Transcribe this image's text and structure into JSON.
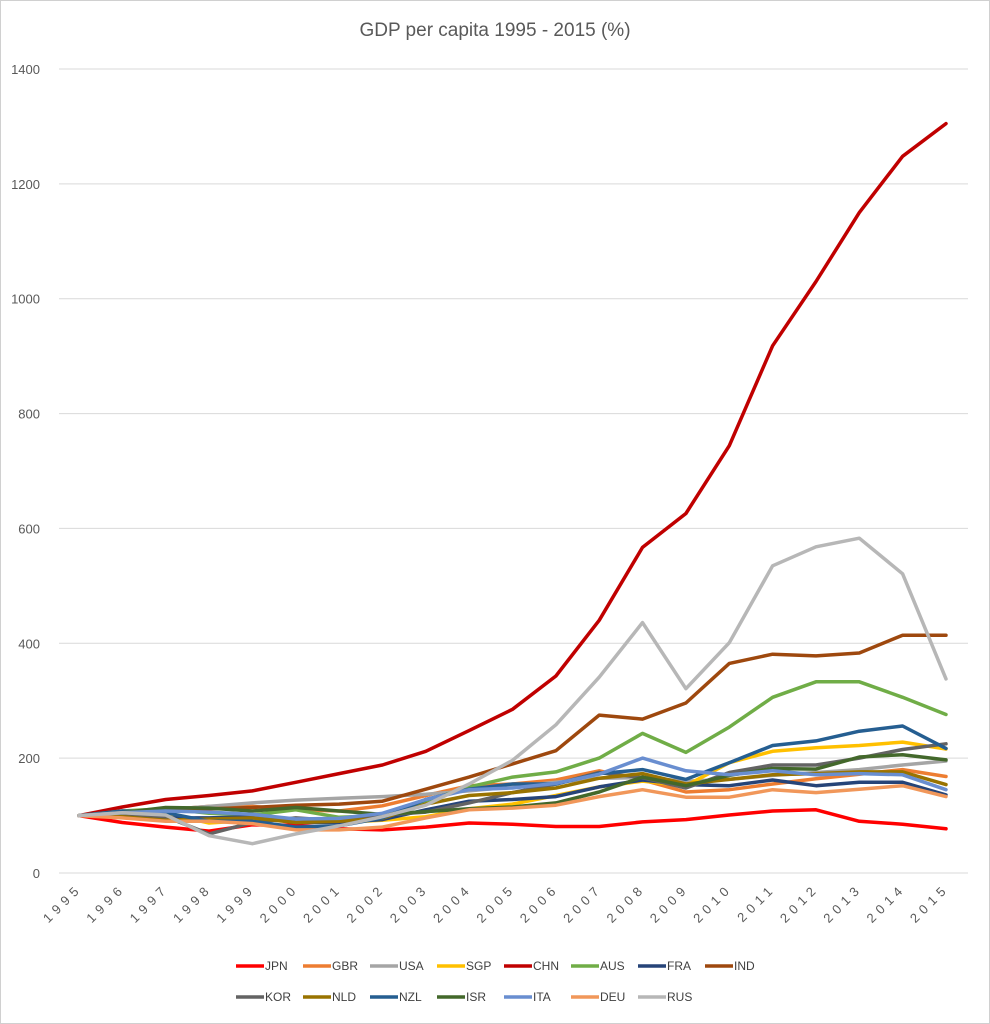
{
  "chart_data": {
    "type": "line",
    "title": "GDP per capita 1995 - 2015 (%)",
    "xlabel": "",
    "ylabel": "",
    "ylim": [
      0,
      1400
    ],
    "yticks": [
      0,
      200,
      400,
      600,
      800,
      1000,
      1200,
      1400
    ],
    "grid": true,
    "legend_position": "bottom",
    "x": [
      "1995",
      "1996",
      "1997",
      "1998",
      "1999",
      "2000",
      "2001",
      "2002",
      "2003",
      "2004",
      "2005",
      "2006",
      "2007",
      "2008",
      "2009",
      "2010",
      "2011",
      "2012",
      "2013",
      "2014",
      "2015"
    ],
    "series": [
      {
        "name": "JPN",
        "color": "#ff0000",
        "values": [
          100,
          88,
          80,
          73,
          84,
          83,
          77,
          75,
          80,
          87,
          85,
          81,
          81,
          89,
          93,
          101,
          108,
          110,
          90,
          85,
          77
        ]
      },
      {
        "name": "GBR",
        "color": "#ed7d31",
        "values": [
          100,
          98,
          110,
          116,
          116,
          110,
          108,
          117,
          135,
          152,
          155,
          162,
          178,
          162,
          141,
          145,
          155,
          164,
          172,
          180,
          168
        ]
      },
      {
        "name": "USA",
        "color": "#a5a5a5",
        "values": [
          100,
          105,
          110,
          116,
          122,
          127,
          130,
          133,
          137,
          143,
          150,
          158,
          165,
          166,
          160,
          163,
          170,
          175,
          180,
          188,
          195
        ]
      },
      {
        "name": "SGP",
        "color": "#ffc000",
        "values": [
          100,
          104,
          104,
          87,
          92,
          95,
          88,
          92,
          98,
          112,
          120,
          135,
          150,
          160,
          152,
          192,
          212,
          218,
          222,
          228,
          216
        ]
      },
      {
        "name": "CHN",
        "color": "#c00000",
        "values": [
          100,
          115,
          128,
          135,
          143,
          158,
          173,
          188,
          212,
          248,
          285,
          343,
          440,
          567,
          626,
          744,
          918,
          1030,
          1150,
          1248,
          1305
        ]
      },
      {
        "name": "AUS",
        "color": "#70ad47",
        "values": [
          100,
          108,
          112,
          104,
          101,
          110,
          97,
          100,
          125,
          150,
          167,
          176,
          200,
          243,
          210,
          254,
          306,
          333,
          333,
          306,
          276
        ]
      },
      {
        "name": "FRA",
        "color": "#264478",
        "values": [
          100,
          100,
          96,
          96,
          98,
          88,
          88,
          93,
          110,
          125,
          128,
          133,
          150,
          162,
          154,
          152,
          162,
          152,
          158,
          158,
          136
        ]
      },
      {
        "name": "IND",
        "color": "#9e480e",
        "values": [
          100,
          106,
          108,
          112,
          114,
          118,
          120,
          125,
          146,
          167,
          190,
          213,
          275,
          268,
          296,
          365,
          381,
          378,
          383,
          414,
          414
        ]
      },
      {
        "name": "KOR",
        "color": "#636363",
        "values": [
          100,
          104,
          98,
          68,
          88,
          96,
          91,
          101,
          106,
          122,
          140,
          155,
          175,
          166,
          148,
          175,
          188,
          188,
          200,
          215,
          225
        ]
      },
      {
        "name": "NLD",
        "color": "#997300",
        "values": [
          100,
          98,
          92,
          94,
          96,
          88,
          90,
          95,
          120,
          135,
          140,
          148,
          165,
          173,
          155,
          163,
          171,
          173,
          176,
          176,
          154
        ]
      },
      {
        "name": "NZL",
        "color": "#255e91",
        "values": [
          100,
          108,
          105,
          90,
          90,
          80,
          82,
          96,
          128,
          146,
          155,
          155,
          173,
          180,
          163,
          192,
          222,
          230,
          247,
          256,
          217
        ]
      },
      {
        "name": "ISR",
        "color": "#43682b",
        "values": [
          100,
          105,
          114,
          113,
          108,
          114,
          108,
          102,
          107,
          112,
          115,
          122,
          141,
          167,
          152,
          170,
          182,
          181,
          202,
          206,
          197
        ]
      },
      {
        "name": "ITA",
        "color": "#698ed0",
        "values": [
          100,
          105,
          108,
          106,
          102,
          94,
          95,
          104,
          128,
          145,
          148,
          156,
          172,
          200,
          178,
          171,
          178,
          171,
          173,
          171,
          145
        ]
      },
      {
        "name": "DEU",
        "color": "#f1975a",
        "values": [
          100,
          96,
          90,
          90,
          86,
          75,
          75,
          80,
          96,
          110,
          113,
          118,
          133,
          145,
          132,
          132,
          145,
          140,
          146,
          152,
          133
        ]
      },
      {
        "name": "RUS",
        "color": "#b7b7b7",
        "values": [
          100,
          105,
          101,
          65,
          51,
          68,
          82,
          98,
          118,
          155,
          196,
          258,
          341,
          436,
          321,
          401,
          535,
          568,
          583,
          521,
          338
        ]
      }
    ]
  }
}
